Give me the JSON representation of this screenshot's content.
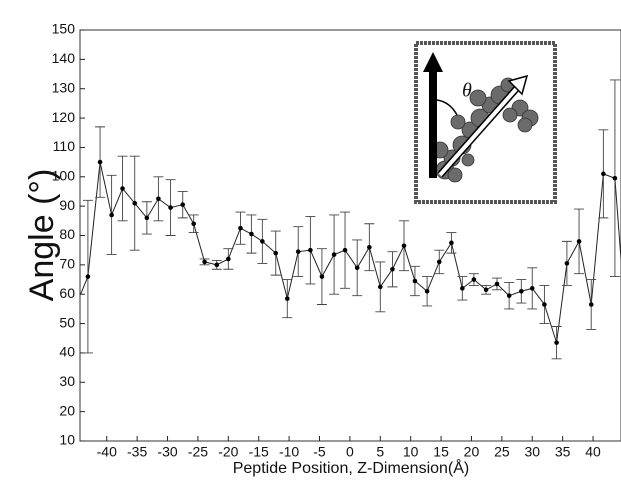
{
  "chart_data": {
    "type": "errorline",
    "xlabel": "Peptide Position, Z-Dimension(Å)",
    "ylabel": "Angle (°)",
    "inset_label": "θ",
    "color": "#222222",
    "x": [
      -44.3,
      -43.1,
      -41.1,
      -39.2,
      -37.4,
      -35.4,
      -33.4,
      -31.5,
      -29.5,
      -27.5,
      -25.7,
      -23.9,
      -21.9,
      -20.0,
      -18.0,
      -16.2,
      -14.4,
      -12.2,
      -10.3,
      -8.5,
      -6.5,
      -4.6,
      -2.6,
      -0.8,
      1.2,
      3.2,
      5.0,
      7.0,
      8.9,
      10.7,
      12.7,
      14.7,
      16.7,
      18.5,
      20.4,
      22.4,
      24.2,
      26.2,
      28.2,
      30.0,
      32.0,
      34.0,
      35.7,
      37.7,
      39.7,
      41.7,
      43.6,
      44.6
    ],
    "values": [
      60,
      66,
      105,
      87,
      96,
      91,
      86,
      92.5,
      89.5,
      90.5,
      84,
      71,
      70,
      72,
      82.5,
      80.5,
      78,
      74,
      58.5,
      74.5,
      75,
      66,
      73.5,
      75,
      69,
      76,
      62.5,
      68.5,
      76.5,
      64.5,
      61,
      71,
      77.5,
      62,
      65,
      61.5,
      63.5,
      59.5,
      61,
      62,
      56.5,
      43.5,
      70.5,
      78,
      56.5,
      101,
      99.5,
      72
    ],
    "errors": [
      null,
      26,
      12,
      13.5,
      11,
      16,
      5.5,
      7.5,
      9.5,
      4.5,
      3,
      1,
      1.5,
      3.5,
      5.5,
      6.5,
      7.5,
      7.5,
      6.5,
      8.5,
      11.5,
      9.5,
      13.5,
      13,
      9.5,
      8,
      8.5,
      6,
      8.5,
      5,
      5,
      4,
      3.5,
      4,
      2,
      1.5,
      2,
      4.5,
      4,
      7,
      6.5,
      5.5,
      7.5,
      11,
      8.5,
      15,
      33.5,
      null
    ],
    "xlim": [
      -44.4,
      44.6
    ],
    "ylim": [
      10,
      150
    ],
    "xticks": [
      -40,
      -35,
      -30,
      -25,
      -20,
      -15,
      -10,
      -5,
      0,
      5,
      10,
      15,
      20,
      25,
      30,
      35,
      40
    ],
    "yticks": [
      10,
      20,
      30,
      40,
      50,
      60,
      70,
      80,
      90,
      100,
      110,
      120,
      130,
      140,
      150
    ]
  }
}
